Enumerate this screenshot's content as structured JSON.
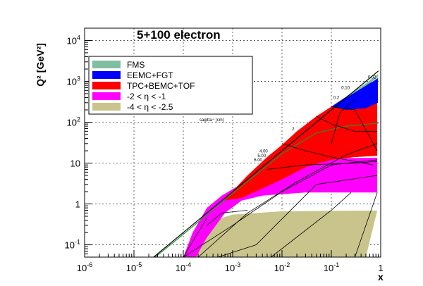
{
  "chart_data": {
    "type": "area",
    "title": "5+100 electron",
    "xlabel": "x",
    "ylabel": "Q²",
    "ylabel_unit": "[GeV²]",
    "xscale": "log",
    "yscale": "log",
    "xlim": [
      1e-06,
      1
    ],
    "ylim": [
      0.05,
      20000
    ],
    "x_ticks": [
      {
        "value": 1e-06,
        "base": "10",
        "exp": "-6"
      },
      {
        "value": 1e-05,
        "base": "10",
        "exp": "-5"
      },
      {
        "value": 0.0001,
        "base": "10",
        "exp": "-4"
      },
      {
        "value": 0.001,
        "base": "10",
        "exp": "-3"
      },
      {
        "value": 0.01,
        "base": "10",
        "exp": "-2"
      },
      {
        "value": 0.1,
        "base": "10",
        "exp": "-1"
      },
      {
        "value": 1,
        "base": "1",
        "exp": ""
      }
    ],
    "y_ticks": [
      {
        "value": 0.1,
        "base": "10",
        "exp": "-1"
      },
      {
        "value": 1,
        "base": "1",
        "exp": ""
      },
      {
        "value": 10,
        "base": "10",
        "exp": ""
      },
      {
        "value": 100,
        "base": "10",
        "exp": "2"
      },
      {
        "value": 1000,
        "base": "10",
        "exp": "3"
      },
      {
        "value": 10000,
        "base": "10",
        "exp": "4"
      }
    ],
    "grid": true,
    "legend_position": "top-left",
    "legend": [
      {
        "name": "FMS",
        "color": "#7fbf9f"
      },
      {
        "name": "EEMC+FGT",
        "color": "#0000ff"
      },
      {
        "name": "TPC+BEMC+TOF",
        "color": "#ff0000"
      },
      {
        "name": "-2 < η < -1",
        "color": "#ff00ff"
      },
      {
        "name": "-4 < η < -2.5",
        "color": "#c8c48c"
      }
    ],
    "regions": [
      {
        "name": "-4 < η < -2.5",
        "color": "#c8c48c",
        "points": [
          [
            0.0001,
            0.05
          ],
          [
            0.0002,
            0.3
          ],
          [
            0.001,
            0.55
          ],
          [
            0.01,
            0.66
          ],
          [
            0.1,
            0.68
          ],
          [
            0.85,
            0.69
          ],
          [
            0.5,
            0.05
          ]
        ]
      },
      {
        "name": "-2 < η < -1",
        "color": "#ff00ff",
        "points": [
          [
            0.0001,
            0.05
          ],
          [
            0.000155,
            0.2
          ],
          [
            0.0003,
            0.8
          ],
          [
            0.0006,
            1.6
          ],
          [
            0.001,
            2.3
          ],
          [
            0.002,
            3.7
          ],
          [
            0.005,
            6.5
          ],
          [
            0.01,
            9.5
          ],
          [
            0.02,
            11.5
          ],
          [
            0.05,
            13.0
          ],
          [
            0.85,
            13.5
          ],
          [
            0.85,
            1.9
          ],
          [
            0.03,
            1.9
          ],
          [
            0.004,
            1.6
          ],
          [
            0.0015,
            1.2
          ],
          [
            0.0007,
            0.6
          ],
          [
            0.0003,
            0.15
          ],
          [
            0.00018,
            0.05
          ]
        ]
      },
      {
        "name": "TPC+BEMC+TOF",
        "color": "#ff0000",
        "points": [
          [
            0.00065,
            1.2
          ],
          [
            0.002,
            5.0
          ],
          [
            0.005,
            14
          ],
          [
            0.01,
            28
          ],
          [
            0.02,
            60
          ],
          [
            0.05,
            140
          ],
          [
            0.1,
            240
          ],
          [
            0.2,
            380
          ],
          [
            0.4,
            520
          ],
          [
            0.85,
            600
          ],
          [
            0.85,
            15
          ],
          [
            0.3,
            14
          ],
          [
            0.1,
            12
          ],
          [
            0.03,
            8
          ],
          [
            0.01,
            4
          ],
          [
            0.004,
            2.4
          ],
          [
            0.0015,
            1.4
          ]
        ]
      },
      {
        "name": "EEMC+FGT",
        "color": "#0000ff",
        "points": [
          [
            0.1,
            240
          ],
          [
            0.2,
            420
          ],
          [
            0.4,
            700
          ],
          [
            0.7,
            1000
          ],
          [
            0.88,
            1200
          ],
          [
            0.88,
            300
          ],
          [
            0.5,
            220
          ],
          [
            0.2,
            200
          ]
        ]
      },
      {
        "name": "FMS",
        "color": "#7fbf9f",
        "points": [
          [
            0.2,
            430
          ],
          [
            0.5,
            900
          ],
          [
            0.88,
            1500
          ],
          [
            0.88,
            1250
          ],
          [
            0.5,
            780
          ],
          [
            0.2,
            400
          ]
        ]
      }
    ],
    "curves": [
      {
        "name": "kinematic-limit",
        "color": "#000000",
        "points": [
          [
            2.5e-05,
            0.05
          ],
          [
            0.0001,
            0.2
          ],
          [
            0.001,
            2
          ],
          [
            0.01,
            20
          ],
          [
            0.1,
            200
          ],
          [
            0.5,
            1000
          ],
          [
            0.9,
            1800
          ]
        ]
      },
      {
        "name": "green-line",
        "color": "#2e8b2e",
        "points": [
          [
            2.7e-05,
            0.05
          ],
          [
            0.0001,
            0.18
          ],
          [
            0.001,
            1.8
          ],
          [
            0.01,
            17
          ],
          [
            0.05,
            55
          ],
          [
            0.2,
            80
          ],
          [
            0.9,
            95
          ]
        ]
      },
      {
        "name": "outline-1",
        "color": "#000000",
        "points": [
          [
            0.0001,
            0.05
          ],
          [
            0.001,
            0.3
          ],
          [
            0.01,
            2
          ],
          [
            0.1,
            9
          ],
          [
            0.85,
            12
          ]
        ]
      },
      {
        "name": "outline-2",
        "color": "#000000",
        "points": [
          [
            0.0002,
            0.05
          ],
          [
            0.002,
            0.6
          ],
          [
            0.02,
            3.5
          ],
          [
            0.2,
            16
          ],
          [
            0.85,
            30
          ]
        ]
      },
      {
        "name": "outline-3",
        "color": "#000000",
        "points": [
          [
            0.0005,
            0.05
          ],
          [
            0.003,
            0.1
          ],
          [
            0.05,
            3
          ],
          [
            0.85,
            5
          ]
        ]
      },
      {
        "name": "outline-4",
        "color": "#000000",
        "points": [
          [
            0.0003,
            0.3
          ],
          [
            0.0006,
            0.6
          ],
          [
            0.002,
            0.7
          ]
        ]
      },
      {
        "name": "outline-5",
        "color": "#000000",
        "points": [
          [
            0.0001,
            0.05
          ],
          [
            0.0003,
            0.45
          ]
        ]
      },
      {
        "name": "outline-6",
        "color": "#000000",
        "points": [
          [
            0.006,
            0.05
          ],
          [
            0.1,
            0.7
          ],
          [
            0.25,
            1.9
          ]
        ]
      },
      {
        "name": "outline-7",
        "color": "#000000",
        "points": [
          [
            0.3,
            0.05
          ],
          [
            0.85,
            1.9
          ]
        ]
      },
      {
        "name": "outline-8",
        "color": "#000000",
        "points": [
          [
            0.005,
            7
          ],
          [
            0.03,
            9
          ],
          [
            0.3,
            10
          ],
          [
            0.85,
            11
          ]
        ]
      },
      {
        "name": "outline-9",
        "color": "#000000",
        "points": [
          [
            0.01,
            30
          ],
          [
            0.03,
            20
          ],
          [
            0.1,
            14
          ],
          [
            0.3,
            11
          ],
          [
            0.7,
            9
          ]
        ]
      },
      {
        "name": "outline-10",
        "color": "#000000",
        "points": [
          [
            0.05,
            140
          ],
          [
            0.1,
            90
          ],
          [
            0.3,
            60
          ],
          [
            0.85,
            60
          ]
        ]
      },
      {
        "name": "outline-11",
        "color": "#000000",
        "points": [
          [
            0.85,
            20
          ],
          [
            0.3,
            200
          ],
          [
            0.1,
            240
          ]
        ]
      },
      {
        "name": "outline-12",
        "color": "#000000",
        "points": [
          [
            0.1,
            30
          ],
          [
            0.15,
            170
          ],
          [
            0.3,
            360
          ]
        ]
      }
    ],
    "inner_labels": [
      {
        "text": "0.02",
        "x": 0.55,
        "y": 1180
      },
      {
        "text": "0.10",
        "x": 0.16,
        "y": 640
      },
      {
        "text": "0.2",
        "x": 0.11,
        "y": 370
      },
      {
        "text": "2",
        "x": 0.016,
        "y": 63
      },
      {
        "text": "4.00",
        "x": 0.0035,
        "y": 18
      },
      {
        "text": "5.00",
        "x": 0.0032,
        "y": 14
      },
      {
        "text": "6.00",
        "x": 0.0027,
        "y": 11
      }
    ],
    "annotation": {
      "base": "sagitta",
      "sup": "-1",
      "rest": " [cm]"
    }
  },
  "colors": {
    "frame": "#000000",
    "grid": "#000000",
    "background": "#ffffff"
  }
}
